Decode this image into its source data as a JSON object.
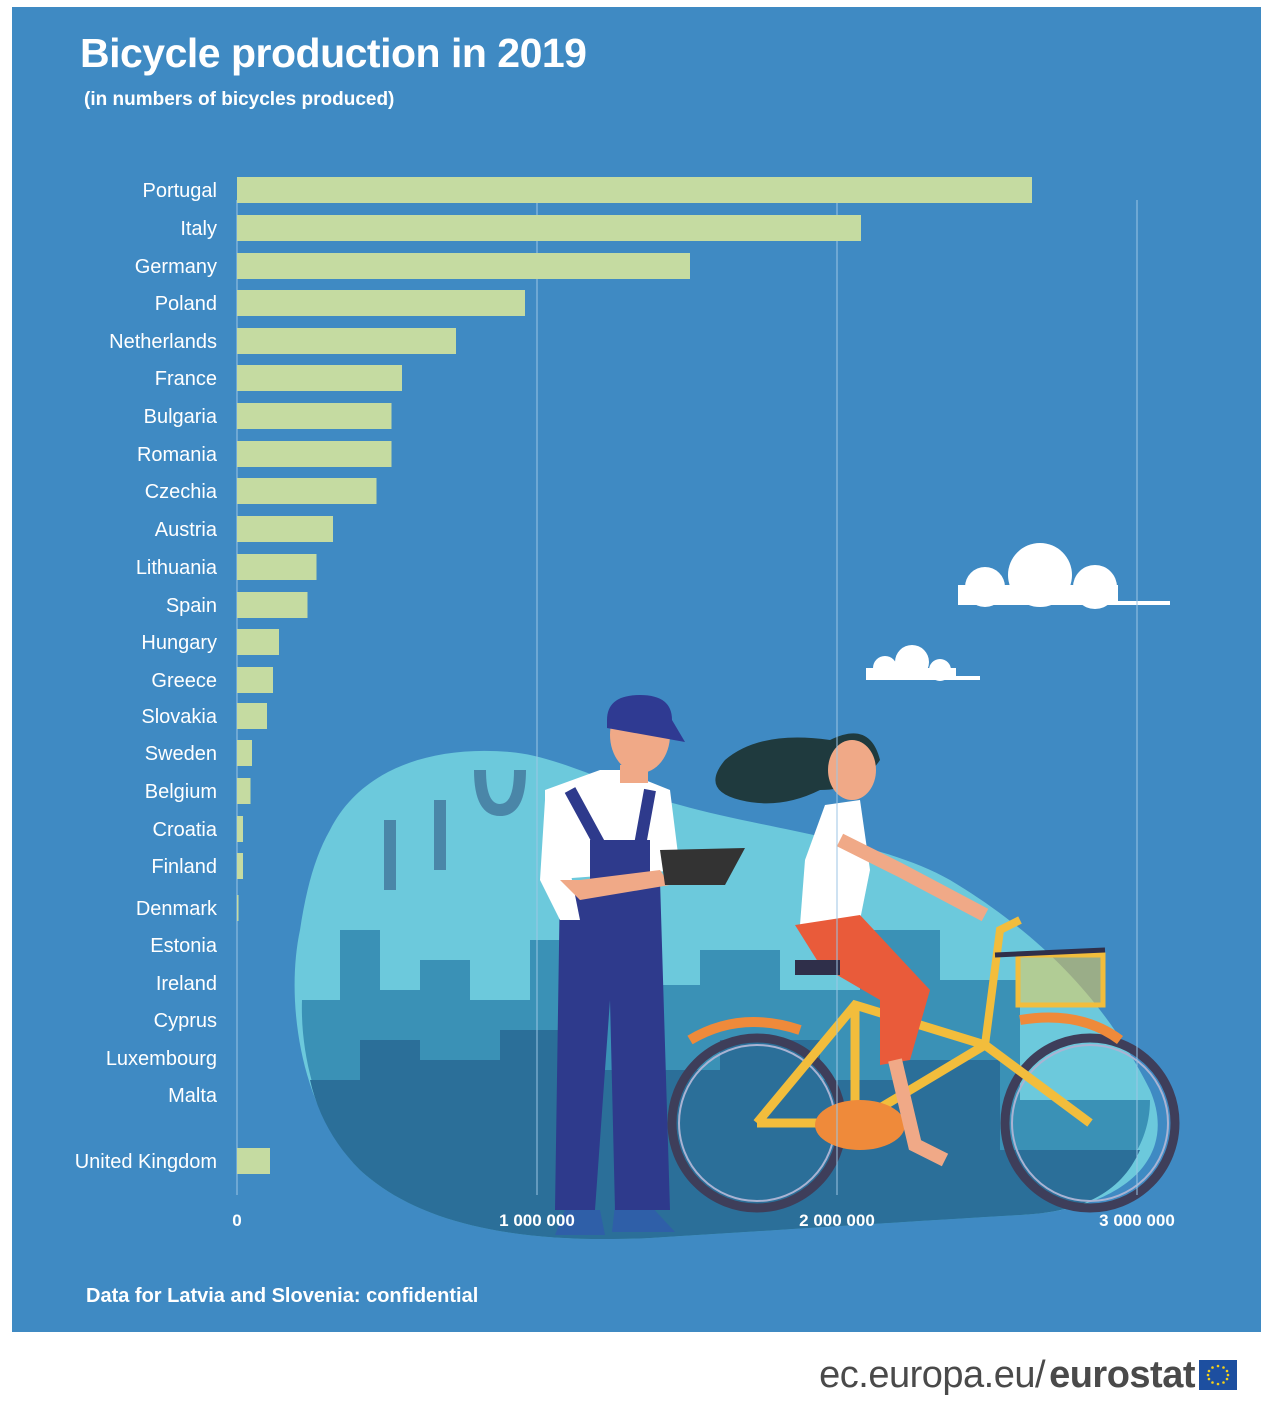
{
  "chart_data": {
    "type": "bar",
    "orientation": "horizontal",
    "title": "Bicycle production in 2019",
    "subtitle": "(in numbers of bicycles produced)",
    "categories": [
      "Portugal",
      "Italy",
      "Germany",
      "Poland",
      "Netherlands",
      "France",
      "Bulgaria",
      "Romania",
      "Czechia",
      "Austria",
      "Lithuania",
      "Spain",
      "Hungary",
      "Greece",
      "Slovakia",
      "Sweden",
      "Belgium",
      "Croatia",
      "Finland",
      "Denmark",
      "Estonia",
      "Ireland",
      "Cyprus",
      "Luxembourg",
      "Malta",
      "United Kingdom"
    ],
    "values": [
      2650000,
      2080000,
      1510000,
      960000,
      730000,
      550000,
      515000,
      515000,
      465000,
      320000,
      265000,
      235000,
      140000,
      120000,
      100000,
      50000,
      45000,
      20000,
      20000,
      5000,
      0,
      0,
      0,
      0,
      0,
      110000
    ],
    "xlim": [
      0,
      3000000
    ],
    "x_ticks": [
      0,
      1000000,
      2000000,
      3000000
    ],
    "x_tick_labels": [
      "0",
      "1 000 000",
      "2 000 000",
      "3 000 000"
    ],
    "grid": "vertical",
    "bar_color": "#c5dba1",
    "background_color": "#3f8ac3"
  },
  "footnote": "Data for Latvia and Slovenia: confidential",
  "brand": {
    "domain": "ec.europa.eu/",
    "name": "eurostat"
  }
}
